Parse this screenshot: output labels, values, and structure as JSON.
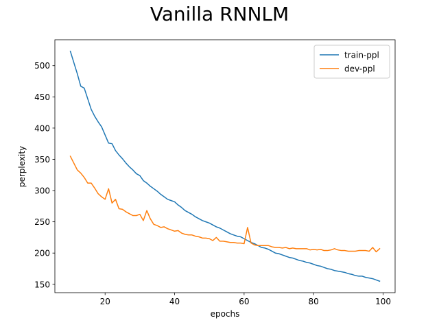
{
  "chart_data": {
    "type": "line",
    "title": "Vanilla RNNLM",
    "xlabel": "epochs",
    "ylabel": "perplexity",
    "x": [
      10,
      11,
      12,
      13,
      14,
      15,
      16,
      17,
      18,
      19,
      20,
      21,
      22,
      23,
      24,
      25,
      26,
      27,
      28,
      29,
      30,
      31,
      32,
      33,
      34,
      35,
      36,
      37,
      38,
      39,
      40,
      41,
      42,
      43,
      44,
      45,
      46,
      47,
      48,
      49,
      50,
      51,
      52,
      53,
      54,
      55,
      56,
      57,
      58,
      59,
      60,
      61,
      62,
      63,
      64,
      65,
      66,
      67,
      68,
      69,
      70,
      71,
      72,
      73,
      74,
      75,
      76,
      77,
      78,
      79,
      80,
      81,
      82,
      83,
      84,
      85,
      86,
      87,
      88,
      89,
      90,
      91,
      92,
      93,
      94,
      95,
      96,
      97,
      98,
      99
    ],
    "series": [
      {
        "name": "train-ppl",
        "color": "#1f77b4",
        "values": [
          523,
          505,
          487,
          467,
          464,
          447,
          430,
          419,
          410,
          402,
          389,
          376,
          375,
          364,
          357,
          351,
          344,
          338,
          333,
          327,
          324,
          316,
          312,
          307,
          303,
          299,
          294,
          290,
          286,
          284,
          282,
          277,
          273,
          268,
          265,
          262,
          258,
          255,
          252,
          250,
          248,
          245,
          242,
          240,
          237,
          234,
          231,
          229,
          227,
          226,
          223,
          220,
          217,
          215,
          212,
          209,
          208,
          206,
          203,
          200,
          199,
          197,
          195,
          193,
          192,
          190,
          188,
          187,
          185,
          184,
          182,
          180,
          179,
          177,
          175,
          174,
          172,
          171,
          170,
          169,
          167,
          166,
          164,
          163,
          163,
          161,
          160,
          159,
          157,
          155
        ]
      },
      {
        "name": "dev-ppl",
        "color": "#ff7f0e",
        "values": [
          355,
          344,
          333,
          328,
          321,
          312,
          312,
          304,
          295,
          290,
          286,
          303,
          280,
          286,
          271,
          270,
          266,
          263,
          260,
          260,
          262,
          252,
          268,
          255,
          246,
          244,
          241,
          242,
          239,
          237,
          235,
          236,
          232,
          230,
          229,
          229,
          227,
          226,
          224,
          224,
          223,
          220,
          225,
          219,
          219,
          218,
          217,
          217,
          216,
          216,
          215,
          241,
          216,
          213,
          212,
          212,
          212,
          212,
          210,
          209,
          209,
          208,
          209,
          207,
          208,
          207,
          207,
          207,
          207,
          205,
          206,
          205,
          206,
          204,
          204,
          205,
          207,
          205,
          204,
          204,
          203,
          203,
          203,
          204,
          204,
          204,
          203,
          209,
          202,
          207
        ]
      }
    ],
    "xlim": [
      5.55,
      103.45
    ],
    "ylim": [
      136.6,
      541.4
    ],
    "xticks": [
      20,
      40,
      60,
      80,
      100
    ],
    "yticks": [
      150,
      200,
      250,
      300,
      350,
      400,
      450,
      500
    ],
    "legend": "upper right",
    "grid": false
  }
}
